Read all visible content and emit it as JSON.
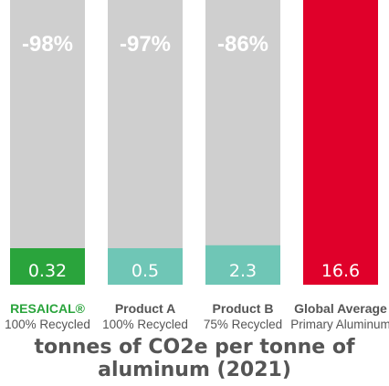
{
  "chart_data": {
    "type": "bar",
    "categories": [
      "RESAICAL®",
      "Product A",
      "Product B",
      "Global Average"
    ],
    "subcategories": [
      "100% Recycled",
      "100% Recycled",
      "75% Recycled",
      "Primary Aluminum"
    ],
    "values": [
      0.32,
      0.5,
      2.3,
      16.6
    ],
    "value_labels": [
      "0.32",
      "0.5",
      "2.3",
      "16.6"
    ],
    "reduction_labels": [
      "-98%",
      "-97%",
      "-86%",
      ""
    ],
    "ylim": [
      0,
      16.6
    ],
    "grid": false,
    "legend": "none",
    "title": "tonnes of CO2e per tonne of aluminum (2021)"
  },
  "colors": {
    "bars": [
      "#2aa43c",
      "#6fc6b6",
      "#6fc6b6",
      "#e0002a"
    ],
    "category_labels": [
      "#2aa43c",
      "#555555",
      "#555555",
      "#555555"
    ],
    "track": "#cfcfcf"
  }
}
